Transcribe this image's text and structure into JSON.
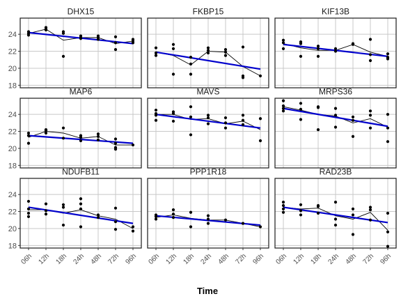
{
  "chart_data": {
    "type": "scatter",
    "xlabel": "Time",
    "ylabel": "",
    "x_ticks": [
      "06h",
      "12h",
      "18h",
      "24h",
      "48h",
      "72h",
      "96h"
    ],
    "ylim": [
      17.7,
      25.9
    ],
    "y_ticks": [
      18,
      20,
      22,
      24
    ],
    "grid": true,
    "fit_color": "#0000cc",
    "mean_line_color": "#000000",
    "point_color": "#000000",
    "panels": [
      {
        "title": "DHX15",
        "points": [
          [
            1,
            23.9
          ],
          [
            1,
            24.1
          ],
          [
            1,
            24.3
          ],
          [
            2,
            24.6
          ],
          [
            2,
            24.8
          ],
          [
            2,
            24.5
          ],
          [
            3,
            21.4
          ],
          [
            3,
            24.1
          ],
          [
            3,
            24.3
          ],
          [
            4,
            23.5
          ],
          [
            4,
            23.6
          ],
          [
            4,
            23.8
          ],
          [
            5,
            23.4
          ],
          [
            5,
            23.6
          ],
          [
            5,
            23.8
          ],
          [
            6,
            22.2
          ],
          [
            6,
            23.0
          ],
          [
            6,
            23.7
          ],
          [
            7,
            23.0
          ],
          [
            7,
            23.2
          ],
          [
            7,
            23.4
          ]
        ],
        "mean": [
          24.1,
          24.6,
          23.3,
          23.6,
          23.6,
          22.9,
          23.2
        ],
        "fit": [
          24.2,
          22.9
        ]
      },
      {
        "title": "FKBP15",
        "points": [
          [
            1,
            21.5
          ],
          [
            1,
            21.8
          ],
          [
            1,
            22.4
          ],
          [
            2,
            19.3
          ],
          [
            2,
            22.3
          ],
          [
            2,
            22.8
          ],
          [
            3,
            19.3
          ],
          [
            3,
            20.5
          ],
          [
            3,
            21.3
          ],
          [
            4,
            21.8
          ],
          [
            4,
            22.1
          ],
          [
            4,
            22.4
          ],
          [
            5,
            21.5
          ],
          [
            5,
            21.9
          ],
          [
            5,
            22.2
          ],
          [
            6,
            18.9
          ],
          [
            6,
            19.1
          ],
          [
            6,
            22.5
          ],
          [
            7,
            19.1
          ]
        ],
        "mean": [
          21.9,
          21.5,
          20.4,
          22.0,
          21.9,
          20.2,
          19.1
        ],
        "fit": [
          21.9,
          19.9
        ]
      },
      {
        "title": "KIF13B",
        "points": [
          [
            1,
            22.3
          ],
          [
            1,
            23.0
          ],
          [
            1,
            23.3
          ],
          [
            2,
            21.4
          ],
          [
            2,
            22.9
          ],
          [
            2,
            23.1
          ],
          [
            3,
            21.4
          ],
          [
            3,
            22.3
          ],
          [
            3,
            22.6
          ],
          [
            4,
            22.0
          ],
          [
            4,
            22.3
          ],
          [
            5,
            22.8
          ],
          [
            5,
            22.9
          ],
          [
            6,
            20.9
          ],
          [
            6,
            21.6
          ],
          [
            6,
            23.4
          ],
          [
            7,
            21.1
          ],
          [
            7,
            21.3
          ],
          [
            7,
            21.7
          ]
        ],
        "mean": [
          22.9,
          22.4,
          22.1,
          22.1,
          22.8,
          21.9,
          21.4
        ],
        "fit": [
          22.8,
          21.4
        ]
      },
      {
        "title": "MAP6",
        "points": [
          [
            1,
            20.6
          ],
          [
            1,
            21.5
          ],
          [
            1,
            21.8
          ],
          [
            2,
            21.8
          ],
          [
            2,
            22.1
          ],
          [
            2,
            22.2
          ],
          [
            3,
            21.2
          ],
          [
            3,
            22.4
          ],
          [
            4,
            20.9
          ],
          [
            4,
            21.3
          ],
          [
            4,
            21.5
          ],
          [
            5,
            21.0
          ],
          [
            5,
            21.4
          ],
          [
            5,
            21.7
          ],
          [
            6,
            19.9
          ],
          [
            6,
            20.1
          ],
          [
            6,
            20.6
          ],
          [
            6,
            21.1
          ],
          [
            7,
            20.4
          ]
        ],
        "mean": [
          21.3,
          22.0,
          21.8,
          21.2,
          21.4,
          20.4,
          20.4
        ],
        "fit": [
          21.5,
          20.6
        ]
      },
      {
        "title": "MAVS",
        "points": [
          [
            1,
            23.3
          ],
          [
            1,
            23.9
          ],
          [
            1,
            24.1
          ],
          [
            1,
            24.5
          ],
          [
            2,
            23.2
          ],
          [
            2,
            24.1
          ],
          [
            2,
            24.3
          ],
          [
            3,
            21.6
          ],
          [
            3,
            23.7
          ],
          [
            3,
            24.9
          ],
          [
            4,
            22.9
          ],
          [
            4,
            23.6
          ],
          [
            4,
            23.9
          ],
          [
            5,
            22.4
          ],
          [
            5,
            23.0
          ],
          [
            5,
            23.6
          ],
          [
            6,
            22.8
          ],
          [
            6,
            23.3
          ],
          [
            6,
            23.9
          ],
          [
            7,
            20.9
          ],
          [
            7,
            23.5
          ]
        ],
        "mean": [
          24.0,
          24.0,
          23.4,
          23.5,
          22.9,
          23.2,
          22.2
        ],
        "fit": [
          24.0,
          22.4
        ]
      },
      {
        "title": "MRPS36",
        "points": [
          [
            1,
            24.4
          ],
          [
            1,
            24.7
          ],
          [
            1,
            25.0
          ],
          [
            1,
            25.6
          ],
          [
            2,
            23.4
          ],
          [
            2,
            24.6
          ],
          [
            2,
            25.3
          ],
          [
            3,
            22.2
          ],
          [
            3,
            24.8
          ],
          [
            3,
            24.9
          ],
          [
            4,
            22.5
          ],
          [
            4,
            23.9
          ],
          [
            4,
            24.7
          ],
          [
            5,
            21.4
          ],
          [
            5,
            23.3
          ],
          [
            5,
            23.7
          ],
          [
            6,
            22.4
          ],
          [
            6,
            23.9
          ],
          [
            6,
            24.4
          ],
          [
            7,
            20.8
          ],
          [
            7,
            22.4
          ],
          [
            7,
            24.0
          ]
        ],
        "mean": [
          24.9,
          24.5,
          24.0,
          23.8,
          23.0,
          23.5,
          22.5
        ],
        "fit": [
          24.7,
          22.6
        ]
      },
      {
        "title": "NDUFB11",
        "points": [
          [
            1,
            21.4
          ],
          [
            1,
            21.8
          ],
          [
            1,
            22.3
          ],
          [
            1,
            23.2
          ],
          [
            2,
            21.7
          ],
          [
            2,
            22.1
          ],
          [
            2,
            22.9
          ],
          [
            3,
            20.4
          ],
          [
            3,
            22.5
          ],
          [
            3,
            22.8
          ],
          [
            4,
            20.2
          ],
          [
            4,
            22.3
          ],
          [
            4,
            22.9
          ],
          [
            4,
            23.5
          ],
          [
            5,
            21.3
          ],
          [
            5,
            21.6
          ],
          [
            6,
            19.9
          ],
          [
            6,
            20.8
          ],
          [
            6,
            22.4
          ],
          [
            7,
            19.7
          ],
          [
            7,
            20.2
          ]
        ],
        "mean": [
          22.2,
          22.2,
          21.8,
          22.2,
          21.5,
          21.1,
          20.0
        ],
        "fit": [
          22.5,
          20.6
        ]
      },
      {
        "title": "PPP1R18",
        "points": [
          [
            1,
            21.1
          ],
          [
            1,
            21.4
          ],
          [
            1,
            21.6
          ],
          [
            2,
            21.3
          ],
          [
            2,
            21.7
          ],
          [
            2,
            22.2
          ],
          [
            3,
            20.2
          ],
          [
            3,
            21.9
          ],
          [
            4,
            20.6
          ],
          [
            4,
            21.1
          ],
          [
            4,
            21.5
          ],
          [
            5,
            21.0
          ],
          [
            6,
            20.6
          ],
          [
            7,
            20.2
          ]
        ],
        "mean": [
          21.3,
          21.6,
          21.2,
          21.0,
          21.0,
          20.6,
          20.2
        ],
        "fit": [
          21.5,
          20.4
        ]
      },
      {
        "title": "RAD23B",
        "points": [
          [
            1,
            21.9
          ],
          [
            1,
            22.3
          ],
          [
            1,
            22.7
          ],
          [
            1,
            23.1
          ],
          [
            2,
            21.6
          ],
          [
            2,
            22.1
          ],
          [
            2,
            22.8
          ],
          [
            3,
            21.8
          ],
          [
            3,
            22.6
          ],
          [
            3,
            22.7
          ],
          [
            4,
            20.4
          ],
          [
            4,
            21.1
          ],
          [
            4,
            23.1
          ],
          [
            5,
            19.3
          ],
          [
            5,
            21.6
          ],
          [
            5,
            22.3
          ],
          [
            6,
            21.0
          ],
          [
            6,
            22.2
          ],
          [
            6,
            22.5
          ],
          [
            7,
            17.9
          ],
          [
            7,
            19.6
          ],
          [
            7,
            21.8
          ]
        ],
        "mean": [
          22.5,
          22.3,
          22.4,
          21.5,
          21.1,
          21.9,
          19.8
        ],
        "fit": [
          22.5,
          20.7
        ]
      }
    ]
  }
}
